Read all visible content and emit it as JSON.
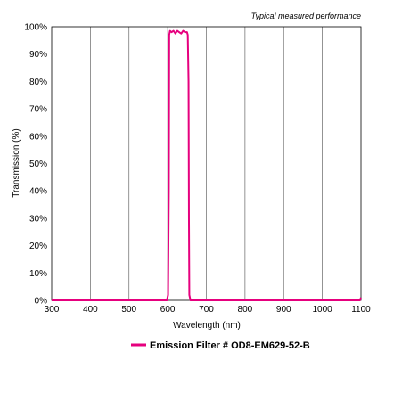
{
  "chart_data": {
    "type": "line",
    "annotation": "Typical measured performance",
    "xlabel": "Wavelength (nm)",
    "ylabel": "Transmission (%)",
    "xlim": [
      300,
      1100
    ],
    "ylim": [
      0,
      100
    ],
    "x_ticks": [
      300,
      400,
      500,
      600,
      700,
      800,
      900,
      1000,
      1100
    ],
    "y_ticks": [
      0,
      10,
      20,
      30,
      40,
      50,
      60,
      70,
      80,
      90,
      100
    ],
    "y_tick_labels": [
      "0%",
      "10%",
      "20%",
      "30%",
      "40%",
      "50%",
      "60%",
      "70%",
      "80%",
      "90%",
      "100%"
    ],
    "grid": "vertical",
    "legend_position": "bottom-center",
    "colors": {
      "series": "#e6007e",
      "grid": "#666666",
      "axis": "#000000"
    },
    "series": [
      {
        "name": "Emission Filter # OD8-EM629-52-B",
        "x": [
          300,
          550,
          598,
          601,
          603,
          604,
          606,
          610,
          615,
          620,
          625,
          630,
          635,
          640,
          645,
          650,
          652,
          654,
          655,
          656,
          659,
          700,
          800,
          900,
          1000,
          1097,
          1100
        ],
        "y": [
          0,
          0,
          0,
          2,
          40,
          97,
          98.5,
          98,
          98.5,
          97.5,
          98.5,
          98,
          97.5,
          98.5,
          98,
          98,
          97,
          80,
          30,
          2,
          0,
          0,
          0,
          0,
          0,
          0,
          1
        ]
      }
    ]
  }
}
